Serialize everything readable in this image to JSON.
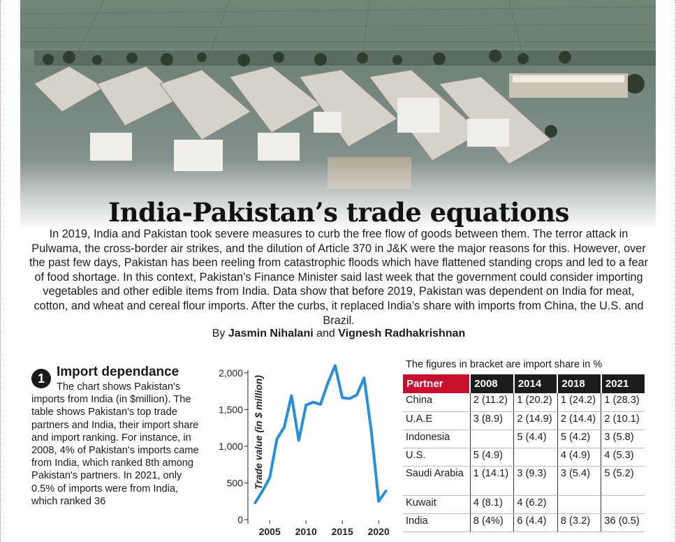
{
  "headline": "India-Pakistan’s trade equations",
  "intro": "In 2019, India and Pakistan took severe measures to curb the free flow of goods between them. The terror attack in Pulwama, the cross-border air strikes, and the dilution of Article 370 in J&K were the major reasons for this. However, over the past few days, Pakistan has been reeling from catastrophic floods which have flattened standing crops and led to a fear of food shortage. In this context, Pakistan’s Finance Minister said last week that the government could consider importing vegetables and other edible items from India. Data show that before 2019, Pakistan was dependent on India for meat, cotton, and wheat and cereal flour imports. After the curbs, it replaced India’s share with imports from China, the U.S. and Brazil.",
  "byline": {
    "prefix": "By",
    "author1": "Jasmin Nihalani",
    "conjunction": "and",
    "author2": "Vignesh Radhakrishnan"
  },
  "sidebar": {
    "number": "1",
    "title": "Import dependance",
    "body": "The chart shows Pakistan's imports from India (in $million). The table shows Pakistan's top trade partners and India, their import share and import ranking. For instance, in 2008, 4% of Pakistan's imports came from India, which ranked 8th among Pakistan's partners. In 2021, only 0.5% of imports were from India, which ranked 36"
  },
  "chart_data": {
    "type": "line",
    "ylabel": "Trade value (in $ million)",
    "xlabel": "",
    "x_ticks": [
      "2005",
      "2010",
      "2015",
      "2020"
    ],
    "y_ticks": [
      "0",
      "500",
      "1,000",
      "1,500",
      "2,000"
    ],
    "xlim": [
      2002,
      2022
    ],
    "ylim": [
      0,
      2150
    ],
    "x": [
      2003,
      2004,
      2005,
      2006,
      2007,
      2008,
      2009,
      2010,
      2011,
      2012,
      2013,
      2014,
      2015,
      2016,
      2017,
      2018,
      2019,
      2020,
      2021
    ],
    "values": [
      230,
      390,
      570,
      1100,
      1260,
      1690,
      1080,
      1560,
      1600,
      1570,
      1860,
      2100,
      1660,
      1650,
      1700,
      1930,
      1200,
      250,
      390
    ],
    "color": "#2a8fd6"
  },
  "table": {
    "caption": "The figures in bracket are import share in %",
    "headers": [
      "Partner",
      "2008",
      "2014",
      "2018",
      "2021"
    ],
    "rows": [
      [
        "China",
        "2 (11.2)",
        "1 (20.2)",
        "1 (24.2)",
        "1 (28.3)"
      ],
      [
        "U.A.E",
        "3 (8.9)",
        "2 (14.9)",
        "2 (14.4)",
        "2 (10.1)"
      ],
      [
        "Indonesia",
        "",
        "5 (4.4)",
        "5 (4.2)",
        "3 (5.8)"
      ],
      [
        "U.S.",
        "5 (4.9)",
        "",
        "4 (4.9)",
        "4 (5.3)"
      ],
      [
        "Saudi Arabia",
        "1 (14.1)",
        "3 (9.3)",
        "3 (5.4)",
        "5 (5.2)"
      ],
      [
        "Kuwait",
        "4 (8.1)",
        "4 (6.2)",
        "",
        ""
      ],
      [
        "India",
        "8 (4%)",
        "6 (4.4)",
        "8 (3.2)",
        "36 (0.5)"
      ]
    ],
    "header_accent": "#c8102e"
  }
}
